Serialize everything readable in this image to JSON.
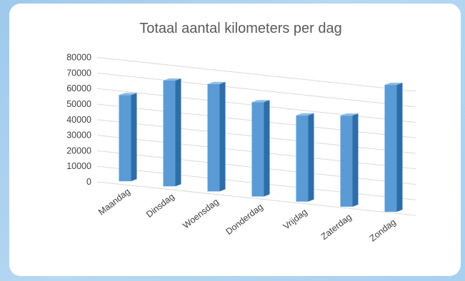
{
  "chart_data": {
    "type": "bar",
    "title": "Totaal aantal kilometers per dag",
    "xlabel": "",
    "ylabel": "",
    "categories": [
      "Maandag",
      "Dinsdag",
      "Woensdag",
      "Donderdag",
      "Vrijdag",
      "Zaterdag",
      "Zondag"
    ],
    "values": [
      53000,
      65000,
      66000,
      58000,
      53000,
      56000,
      78000
    ],
    "yticks": [
      "0",
      "10000",
      "20000",
      "30000",
      "40000",
      "50000",
      "60000",
      "70000",
      "80000"
    ],
    "ylim": [
      0,
      80000
    ],
    "grid": true,
    "legend": "none",
    "colors": {
      "front": "#5b9bd5",
      "side": "#2e6da8",
      "top": "#8dbde6",
      "grid": "#d9d9d9"
    }
  }
}
